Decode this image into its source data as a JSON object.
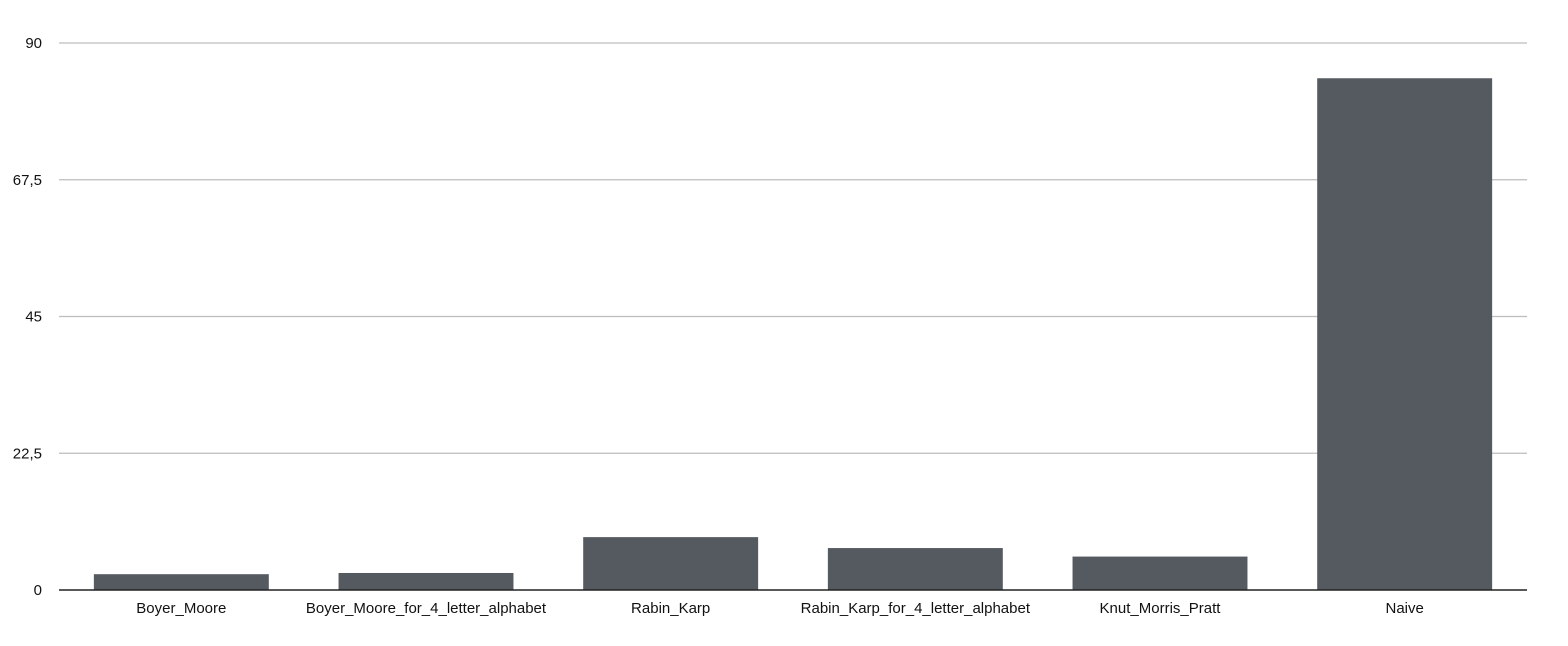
{
  "chart_data": {
    "type": "bar",
    "categories": [
      "Boyer_Moore",
      "Boyer_Moore_for_4_letter_alphabet",
      "Rabin_Karp",
      "Rabin_Karp_for_4_letter_alphabet",
      "Knut_Morris_Pratt",
      "Naive"
    ],
    "values": [
      2.6,
      2.8,
      8.7,
      6.9,
      5.5,
      84.2
    ],
    "yticks": [
      "0",
      "22,5",
      "45",
      "67,5",
      "90"
    ],
    "ylim": [
      0,
      90
    ],
    "grid": true,
    "legend": "none",
    "bar_color": "#555a61"
  }
}
